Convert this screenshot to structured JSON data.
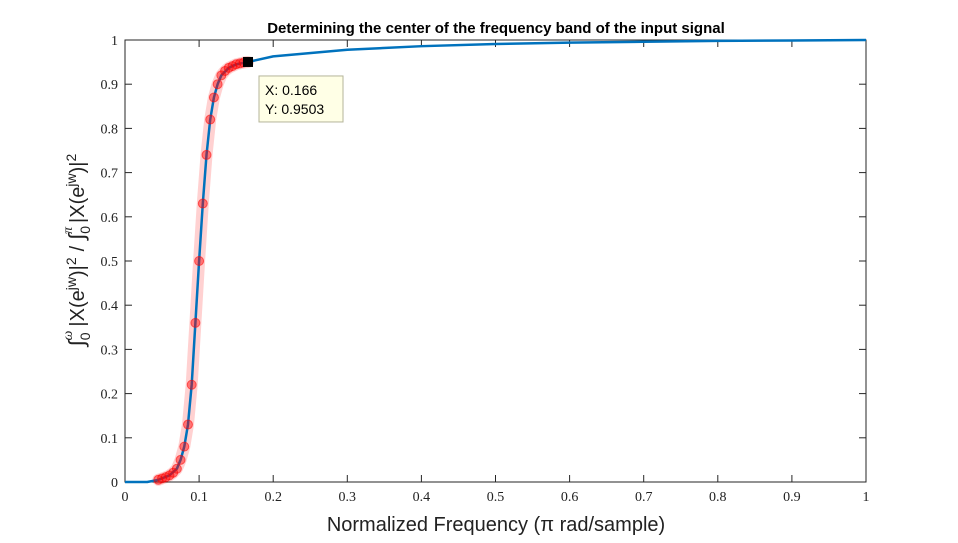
{
  "chart_data": {
    "type": "line",
    "title": "Determining the center of the frequency band of the input signal",
    "xlabel": "Normalized Frequency (π rad/sample)",
    "ylabel_parts": {
      "integral": "∫",
      "sub0": "0",
      "sup_omega": "ω",
      "sup_pi": "π",
      "abs_open": "|X(e",
      "jw": "jw",
      "close": ")|",
      "two": "2",
      "slash": "/"
    },
    "xlim": [
      0,
      1
    ],
    "ylim": [
      0,
      1
    ],
    "xticks": [
      0,
      0.1,
      0.2,
      0.3,
      0.4,
      0.5,
      0.6,
      0.7,
      0.8,
      0.9,
      1
    ],
    "xtick_labels": [
      "0",
      "0.1",
      "0.2",
      "0.3",
      "0.4",
      "0.5",
      "0.6",
      "0.7",
      "0.8",
      "0.9",
      "1"
    ],
    "yticks": [
      0,
      0.1,
      0.2,
      0.3,
      0.4,
      0.5,
      0.6,
      0.7,
      0.8,
      0.9,
      1
    ],
    "ytick_labels": [
      "0",
      "0.1",
      "0.2",
      "0.3",
      "0.4",
      "0.5",
      "0.6",
      "0.7",
      "0.8",
      "0.9",
      "1"
    ],
    "grid": false,
    "series": [
      {
        "color": "#0072bd",
        "x": [
          0,
          0.03,
          0.045,
          0.06,
          0.07,
          0.075,
          0.08,
          0.085,
          0.09,
          0.095,
          0.1,
          0.105,
          0.11,
          0.115,
          0.12,
          0.125,
          0.13,
          0.14,
          0.15,
          0.166,
          0.2,
          0.3,
          0.4,
          0.5,
          0.6,
          0.7,
          0.8,
          0.9,
          1
        ],
        "y": [
          0,
          0,
          0.005,
          0.015,
          0.03,
          0.05,
          0.08,
          0.13,
          0.22,
          0.36,
          0.5,
          0.63,
          0.74,
          0.82,
          0.87,
          0.9,
          0.92,
          0.937,
          0.945,
          0.9503,
          0.963,
          0.978,
          0.986,
          0.991,
          0.994,
          0.996,
          0.998,
          0.999,
          1
        ]
      },
      {
        "color": "#ff0000",
        "x": [
          0.045,
          0.05,
          0.055,
          0.06,
          0.065,
          0.07,
          0.075,
          0.08,
          0.085,
          0.09,
          0.095,
          0.1,
          0.105,
          0.11,
          0.115,
          0.12,
          0.125,
          0.13,
          0.135,
          0.14,
          0.145,
          0.15,
          0.155,
          0.16,
          0.166
        ],
        "y": [
          0.005,
          0.008,
          0.011,
          0.015,
          0.021,
          0.03,
          0.05,
          0.08,
          0.13,
          0.22,
          0.36,
          0.5,
          0.63,
          0.74,
          0.82,
          0.87,
          0.9,
          0.92,
          0.93,
          0.937,
          0.941,
          0.945,
          0.947,
          0.949,
          0.9503
        ]
      }
    ],
    "datatip": {
      "x": 0.166,
      "y": 0.9503,
      "x_text": "X: 0.166",
      "y_text": "Y: 0.9503"
    },
    "colors": {
      "line": "#0072bd",
      "highlight": "#ff0000",
      "datatip_bg": "#ffffe6"
    }
  }
}
